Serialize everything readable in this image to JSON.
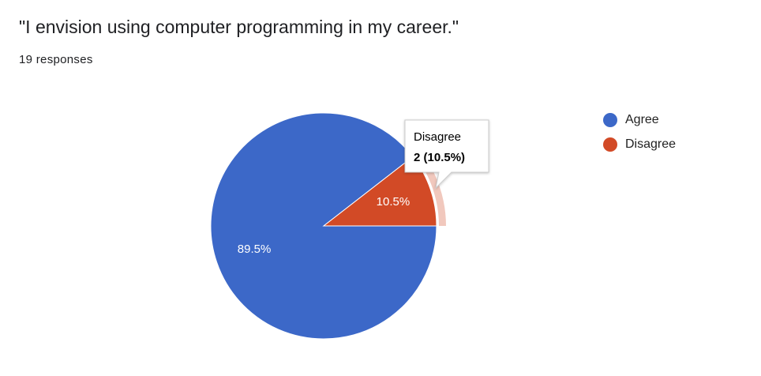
{
  "chart_data": {
    "type": "pie",
    "title": "\"I envision using computer programming in my career.\"",
    "subtitle": "19 responses",
    "categories": [
      "Agree",
      "Disagree"
    ],
    "values": [
      89.5,
      10.5
    ],
    "value_labels": [
      "89.5%",
      "10.5%"
    ],
    "colors": [
      "#3c68c8",
      "#d24a26"
    ],
    "legend": "right",
    "tooltip": "2 (10.5%)"
  }
}
